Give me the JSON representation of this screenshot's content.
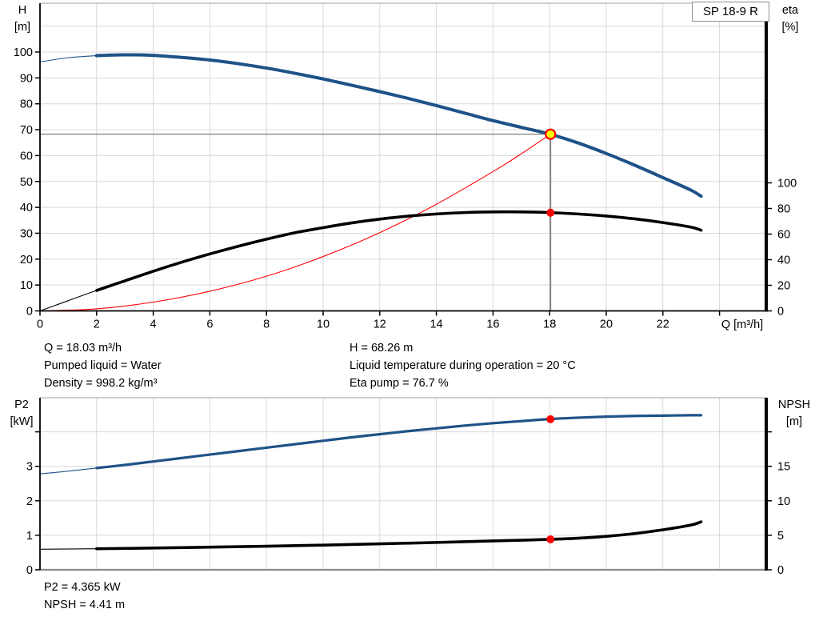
{
  "title_box": "SP 18-9 R",
  "colors": {
    "curve_blue": "#1e5288",
    "curve_black": "#000000",
    "curve_red": "#ff0000",
    "marker_yellow": "#ffff00",
    "marker_red": "#ff0000",
    "grid": "#d9d9d9",
    "crosshair": "#7d7d7d",
    "axis": "#000000",
    "border_gray": "#b4b4b4",
    "bottom_border_gray": "#8a8a8a"
  },
  "chart_data": [
    {
      "type": "line",
      "name": "qh-efficiency-chart",
      "x": {
        "title": "Q [m³/h]",
        "min": 0,
        "max": 25.6,
        "ticks": [
          {
            "q": 0,
            "label": "0"
          },
          {
            "q": 2,
            "label": "2"
          },
          {
            "q": 4,
            "label": "4"
          },
          {
            "q": 6,
            "label": "6"
          },
          {
            "q": 8,
            "label": "8"
          },
          {
            "q": 10,
            "label": "10"
          },
          {
            "q": 12,
            "label": "12"
          },
          {
            "q": 14,
            "label": "14"
          },
          {
            "q": 16,
            "label": "16"
          },
          {
            "q": 18,
            "label": "18"
          },
          {
            "q": 20,
            "label": "20"
          },
          {
            "q": 22,
            "label": "22"
          },
          {
            "q": 24,
            "label": ""
          }
        ],
        "grid": [
          2,
          4,
          6,
          8,
          10,
          12,
          14,
          16,
          18,
          20,
          22,
          24
        ]
      },
      "y_left": {
        "title": "H",
        "unit": "[m]",
        "min": 0,
        "max": 119,
        "ticks": [
          {
            "v": 0,
            "label": "0"
          },
          {
            "v": 10,
            "label": "10"
          },
          {
            "v": 20,
            "label": "20"
          },
          {
            "v": 30,
            "label": "30"
          },
          {
            "v": 40,
            "label": "40"
          },
          {
            "v": 50,
            "label": "50"
          },
          {
            "v": 60,
            "label": "60"
          },
          {
            "v": 70,
            "label": "70"
          },
          {
            "v": 80,
            "label": "80"
          },
          {
            "v": 90,
            "label": "90"
          },
          {
            "v": 100,
            "label": "100"
          }
        ],
        "grid": [
          10,
          20,
          30,
          40,
          50,
          60,
          70,
          80,
          90,
          100,
          110
        ]
      },
      "y_right": {
        "title": "eta",
        "unit": "[%]",
        "min": 0,
        "max": 100,
        "ticks": [
          {
            "v": 0,
            "label": "0"
          },
          {
            "v": 20,
            "label": "20"
          },
          {
            "v": 40,
            "label": "40"
          },
          {
            "v": 60,
            "label": "60"
          },
          {
            "v": 80,
            "label": "80"
          },
          {
            "v": 100,
            "label": "100"
          }
        ]
      },
      "series": [
        {
          "name": "head-curve",
          "axis": "left",
          "color": "#1e5288",
          "width": 4,
          "thin_until": 1.9,
          "points": [
            [
              0,
              96.2
            ],
            [
              1,
              97.8
            ],
            [
              2,
              98.6
            ],
            [
              3,
              98.9
            ],
            [
              4,
              98.7
            ],
            [
              5,
              97.9
            ],
            [
              6,
              96.9
            ],
            [
              7,
              95.5
            ],
            [
              8,
              93.8
            ],
            [
              9,
              91.8
            ],
            [
              10,
              89.6
            ],
            [
              11,
              87.2
            ],
            [
              12,
              84.7
            ],
            [
              13,
              82.1
            ],
            [
              14,
              79.3
            ],
            [
              15,
              76.4
            ],
            [
              16,
              73.5
            ],
            [
              17,
              70.9
            ],
            [
              18,
              68.3
            ],
            [
              19,
              64.9
            ],
            [
              20,
              60.8
            ],
            [
              21,
              56.3
            ],
            [
              22,
              51.5
            ],
            [
              23,
              46.6
            ],
            [
              23.35,
              44.3
            ]
          ]
        },
        {
          "name": "system-curve",
          "axis": "left",
          "color": "#ff0000",
          "width": 1.1,
          "points": [
            [
              0,
              0
            ],
            [
              2,
              0.8
            ],
            [
              4,
              3.4
            ],
            [
              6,
              7.6
            ],
            [
              8,
              13.4
            ],
            [
              10,
              21.0
            ],
            [
              12,
              30.2
            ],
            [
              14,
              41.2
            ],
            [
              16,
              53.8
            ],
            [
              17,
              60.7
            ],
            [
              18.03,
              68.26
            ]
          ]
        },
        {
          "name": "efficiency-curve",
          "axis": "right",
          "color": "#000000",
          "width": 3.6,
          "thin_until": 1.9,
          "points": [
            [
              0,
              0
            ],
            [
              1,
              8
            ],
            [
              2,
              16
            ],
            [
              3,
              23.5
            ],
            [
              4,
              31
            ],
            [
              5,
              38
            ],
            [
              6,
              44.5
            ],
            [
              7,
              50.5
            ],
            [
              8,
              56
            ],
            [
              9,
              61
            ],
            [
              10,
              65
            ],
            [
              11,
              68.7
            ],
            [
              12,
              71.7
            ],
            [
              13,
              74
            ],
            [
              14,
              75.7
            ],
            [
              15,
              76.8
            ],
            [
              16,
              77.3
            ],
            [
              17,
              77.3
            ],
            [
              18,
              76.8
            ],
            [
              19,
              75.7
            ],
            [
              20,
              74.1
            ],
            [
              21,
              71.9
            ],
            [
              22,
              69
            ],
            [
              23,
              65.4
            ],
            [
              23.35,
              63
            ]
          ]
        }
      ],
      "markers": [
        {
          "name": "duty-point-marker",
          "q": 18.03,
          "v": 68.26,
          "axis": "left",
          "r": 6,
          "fill": "#ffff00",
          "stroke": "#ff0000",
          "stroke_w": 2.2
        },
        {
          "name": "efficiency-point-marker",
          "q": 18.03,
          "v": 76.7,
          "axis": "right",
          "r": 5,
          "fill": "#ff0000",
          "stroke": "none",
          "stroke_w": 0
        }
      ],
      "crosshair": {
        "q": 18.03,
        "v": 68.26
      }
    },
    {
      "type": "line",
      "name": "p2-npsh-chart",
      "x": {
        "title": "",
        "min": 0,
        "max": 25.6,
        "ticks": [],
        "grid": [
          2,
          4,
          6,
          8,
          10,
          12,
          14,
          16,
          18,
          20,
          22,
          24
        ]
      },
      "y_left": {
        "title": "P2",
        "unit": "[kW]",
        "min": 0,
        "max": 4.98,
        "ticks": [
          {
            "v": 0,
            "label": "0"
          },
          {
            "v": 1,
            "label": "1"
          },
          {
            "v": 2,
            "label": "2"
          },
          {
            "v": 3,
            "label": "3"
          },
          {
            "v": 4,
            "label": ""
          }
        ],
        "grid": [
          1,
          2,
          3,
          4
        ]
      },
      "y_right": {
        "title": "NPSH",
        "unit": "[m]",
        "min": 0,
        "max": 24.9,
        "ticks": [
          {
            "v": 0,
            "label": "0"
          },
          {
            "v": 5,
            "label": "5"
          },
          {
            "v": 10,
            "label": "10"
          },
          {
            "v": 15,
            "label": "15"
          },
          {
            "v": 20,
            "label": ""
          }
        ]
      },
      "series": [
        {
          "name": "p2-curve",
          "axis": "left",
          "color": "#1e5288",
          "width": 3.2,
          "thin_until": 1.9,
          "points": [
            [
              0,
              2.78
            ],
            [
              1,
              2.86
            ],
            [
              2,
              2.95
            ],
            [
              3,
              3.04
            ],
            [
              4,
              3.14
            ],
            [
              5,
              3.24
            ],
            [
              6,
              3.34
            ],
            [
              7,
              3.44
            ],
            [
              8,
              3.54
            ],
            [
              9,
              3.64
            ],
            [
              10,
              3.74
            ],
            [
              11,
              3.84
            ],
            [
              12,
              3.93
            ],
            [
              13,
              4.02
            ],
            [
              14,
              4.1
            ],
            [
              15,
              4.18
            ],
            [
              16,
              4.25
            ],
            [
              17,
              4.31
            ],
            [
              18,
              4.37
            ],
            [
              19,
              4.41
            ],
            [
              20,
              4.44
            ],
            [
              21,
              4.46
            ],
            [
              22,
              4.47
            ],
            [
              23,
              4.48
            ],
            [
              23.35,
              4.48
            ]
          ]
        },
        {
          "name": "npsh-curve",
          "axis": "right",
          "color": "#000000",
          "width": 3.6,
          "thin_until": 1.9,
          "points": [
            [
              0,
              2.98
            ],
            [
              2,
              3.05
            ],
            [
              4,
              3.15
            ],
            [
              6,
              3.28
            ],
            [
              8,
              3.42
            ],
            [
              10,
              3.58
            ],
            [
              12,
              3.76
            ],
            [
              14,
              3.96
            ],
            [
              16,
              4.18
            ],
            [
              17,
              4.29
            ],
            [
              18,
              4.41
            ],
            [
              19,
              4.58
            ],
            [
              20,
              4.85
            ],
            [
              21,
              5.25
            ],
            [
              22,
              5.8
            ],
            [
              23,
              6.5
            ],
            [
              23.35,
              6.95
            ]
          ]
        }
      ],
      "markers": [
        {
          "name": "p2-point-marker",
          "q": 18.03,
          "v": 4.365,
          "axis": "left",
          "r": 5,
          "fill": "#ff0000",
          "stroke": "none",
          "stroke_w": 0
        },
        {
          "name": "npsh-point-marker",
          "q": 18.03,
          "v": 4.41,
          "axis": "right",
          "r": 5,
          "fill": "#ff0000",
          "stroke": "none",
          "stroke_w": 0
        }
      ]
    }
  ],
  "info": {
    "top_left": [
      "Q = 18.03 m³/h",
      "Pumped liquid = Water",
      "Density = 998.2 kg/m³"
    ],
    "top_right": [
      "H = 68.26 m",
      "Liquid temperature during operation = 20 °C",
      "Eta pump = 76.7 %"
    ],
    "bottom": [
      "P2 = 4.365 kW",
      "NPSH = 4.41 m"
    ]
  }
}
